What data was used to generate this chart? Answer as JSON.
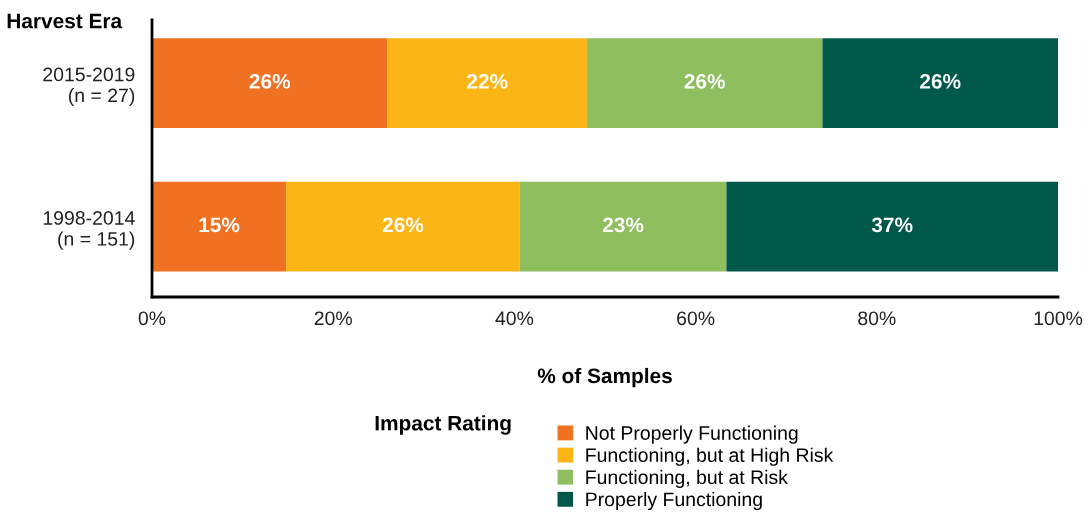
{
  "chart_data": {
    "type": "bar",
    "orientation": "horizontal",
    "stacked": true,
    "categories": [
      "2015-2019\n(n = 27)",
      "1998-2014\n(n = 151)"
    ],
    "series": [
      {
        "name": "Not Properly Functioning",
        "color": "#f07122",
        "values": [
          26,
          14.8
        ],
        "value_labels": [
          "26%",
          "15%"
        ]
      },
      {
        "name": "Functioning, but at High Risk",
        "color": "#fbb615",
        "values": [
          22,
          25.8
        ],
        "value_labels": [
          "22%",
          "26%"
        ]
      },
      {
        "name": "Functioning, but at Risk",
        "color": "#8fbe5f",
        "values": [
          26,
          22.8
        ],
        "value_labels": [
          "26%",
          "23%"
        ]
      },
      {
        "name": "Properly Functioning",
        "color": "#00584a",
        "values": [
          26,
          36.6
        ],
        "value_labels": [
          "26%",
          "37%"
        ]
      }
    ],
    "ylabel": "Harvest Era",
    "xlabel": "% of Samples",
    "legend_title": "Impact Rating",
    "legend": "bottom",
    "xlim": [
      0,
      100
    ],
    "xticks": [
      {
        "value": 0,
        "label": "0%"
      },
      {
        "value": 20,
        "label": "20%"
      },
      {
        "value": 40,
        "label": "40%"
      },
      {
        "value": 60,
        "label": "60%"
      },
      {
        "value": 80,
        "label": "80%"
      },
      {
        "value": 100,
        "label": "100%"
      }
    ],
    "grid": false
  }
}
